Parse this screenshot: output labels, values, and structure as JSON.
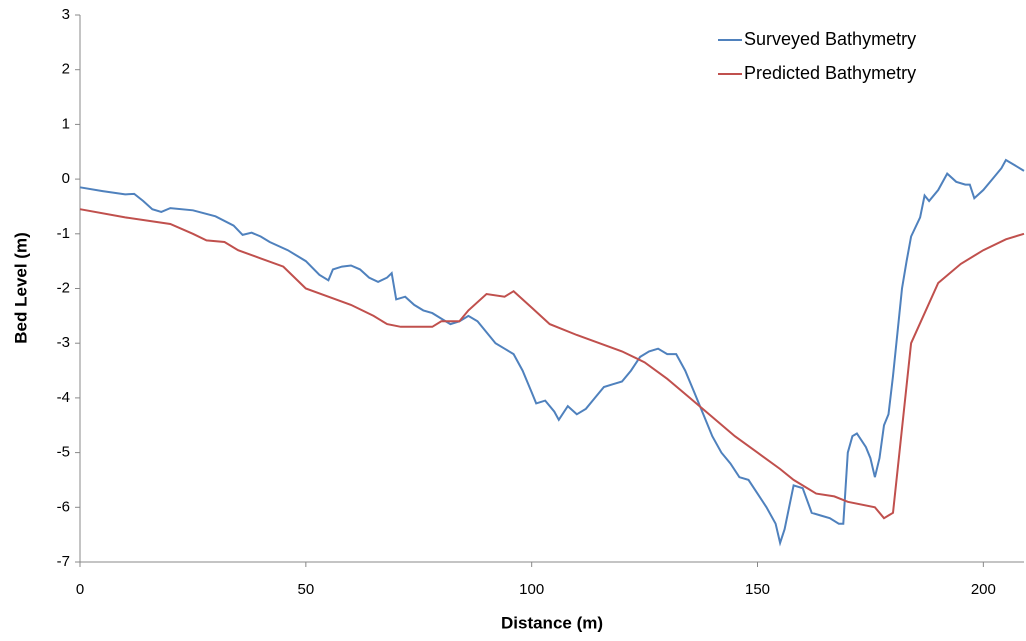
{
  "chart_data": {
    "type": "line",
    "xlabel": "Distance (m)",
    "ylabel": "Bed Level (m)",
    "xlim": [
      0,
      209
    ],
    "ylim": [
      -7,
      3
    ],
    "xticks": [
      0,
      50,
      100,
      150,
      200
    ],
    "yticks": [
      3,
      2,
      1,
      0,
      -1,
      -2,
      -3,
      -4,
      -5,
      -6,
      -7
    ],
    "grid": false,
    "legend": "upper right",
    "series": [
      {
        "name": "Surveyed Bathymetry",
        "color": "#4f81bd",
        "x": [
          0,
          5,
          10,
          12,
          14,
          16,
          18,
          20,
          25,
          30,
          34,
          36,
          38,
          40,
          42,
          46,
          50,
          53,
          55,
          56,
          58,
          60,
          62,
          64,
          66,
          68,
          69,
          70,
          72,
          74,
          76,
          78,
          80,
          82,
          84,
          86,
          88,
          90,
          92,
          94,
          96,
          98,
          100,
          101,
          103,
          105,
          106,
          108,
          110,
          112,
          114,
          116,
          118,
          120,
          122,
          124,
          126,
          128,
          130,
          132,
          134,
          136,
          138,
          140,
          142,
          144,
          146,
          148,
          150,
          152,
          154,
          155,
          156,
          158,
          160,
          162,
          164,
          166,
          168,
          169,
          170,
          171,
          172,
          174,
          175,
          176,
          177,
          178,
          179,
          180,
          181,
          182,
          183,
          184,
          186,
          187,
          188,
          190,
          192,
          194,
          196,
          197,
          198,
          200,
          202,
          204,
          205,
          207,
          209
        ],
        "values": [
          -0.15,
          -0.22,
          -0.28,
          -0.27,
          -0.4,
          -0.55,
          -0.6,
          -0.53,
          -0.57,
          -0.68,
          -0.85,
          -1.02,
          -0.98,
          -1.05,
          -1.15,
          -1.3,
          -1.5,
          -1.75,
          -1.85,
          -1.65,
          -1.6,
          -1.58,
          -1.65,
          -1.8,
          -1.88,
          -1.8,
          -1.72,
          -2.2,
          -2.15,
          -2.3,
          -2.4,
          -2.45,
          -2.55,
          -2.65,
          -2.6,
          -2.5,
          -2.6,
          -2.8,
          -3.0,
          -3.1,
          -3.2,
          -3.5,
          -3.9,
          -4.1,
          -4.05,
          -4.25,
          -4.4,
          -4.15,
          -4.3,
          -4.2,
          -4.0,
          -3.8,
          -3.75,
          -3.7,
          -3.5,
          -3.25,
          -3.15,
          -3.1,
          -3.2,
          -3.2,
          -3.5,
          -3.9,
          -4.3,
          -4.7,
          -5.0,
          -5.2,
          -5.45,
          -5.5,
          -5.75,
          -6.0,
          -6.3,
          -6.65,
          -6.4,
          -5.6,
          -5.65,
          -6.1,
          -6.15,
          -6.2,
          -6.3,
          -6.3,
          -5.0,
          -4.7,
          -4.65,
          -4.9,
          -5.1,
          -5.45,
          -5.1,
          -4.5,
          -4.3,
          -3.6,
          -2.8,
          -2.0,
          -1.5,
          -1.05,
          -0.7,
          -0.3,
          -0.4,
          -0.2,
          0.1,
          -0.05,
          -0.1,
          -0.1,
          -0.35,
          -0.2,
          0.0,
          0.2,
          0.35,
          0.25,
          0.15
        ]
      },
      {
        "name": "Predicted Bathymetry",
        "color": "#c0504d",
        "x": [
          0,
          10,
          20,
          25,
          28,
          32,
          35,
          40,
          45,
          50,
          55,
          60,
          65,
          68,
          71,
          78,
          80,
          84,
          86,
          90,
          94,
          96,
          100,
          104,
          110,
          115,
          120,
          125,
          130,
          135,
          140,
          145,
          150,
          155,
          158,
          163,
          167,
          170,
          176,
          178,
          180,
          184,
          190,
          195,
          200,
          205,
          209
        ],
        "values": [
          -0.55,
          -0.7,
          -0.82,
          -1.0,
          -1.12,
          -1.15,
          -1.3,
          -1.45,
          -1.6,
          -2.0,
          -2.15,
          -2.3,
          -2.5,
          -2.65,
          -2.7,
          -2.7,
          -2.6,
          -2.6,
          -2.4,
          -2.1,
          -2.15,
          -2.05,
          -2.35,
          -2.65,
          -2.85,
          -3.0,
          -3.15,
          -3.35,
          -3.65,
          -4.0,
          -4.35,
          -4.7,
          -5.0,
          -5.3,
          -5.5,
          -5.75,
          -5.8,
          -5.9,
          -6.0,
          -6.2,
          -6.1,
          -3.0,
          -1.9,
          -1.55,
          -1.3,
          -1.1,
          -1.0
        ]
      }
    ]
  }
}
